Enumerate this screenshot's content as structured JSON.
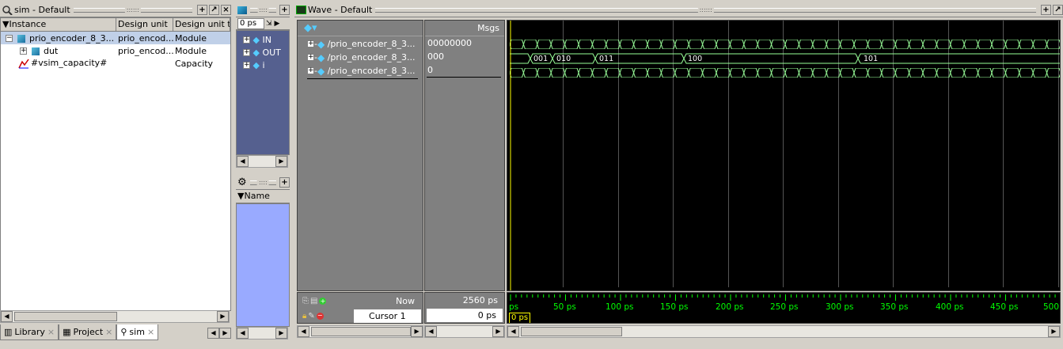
{
  "sim_panel": {
    "title": "sim - Default",
    "columns": [
      "Instance",
      "Design unit",
      "Design unit typ"
    ],
    "rows": [
      {
        "instance": "prio_encoder_8_3...",
        "design_unit": "prio_encod...",
        "type": "Module"
      },
      {
        "instance": "dut",
        "design_unit": "prio_encod...",
        "type": "Module"
      },
      {
        "instance": "#vsim_capacity#",
        "design_unit": "",
        "type": "Capacity"
      }
    ],
    "tabs": [
      "Library",
      "Project",
      "sim"
    ]
  },
  "objects_panel": {
    "time_field": "0 ps",
    "items": [
      "IN",
      "OUT",
      "i"
    ]
  },
  "process_panel": {
    "column": "Name"
  },
  "wave": {
    "title": "Wave - Default",
    "msgs_header": "Msgs",
    "signals": [
      {
        "name": "/prio_encoder_8_3...",
        "value": "00000000"
      },
      {
        "name": "/prio_encoder_8_3...",
        "value": "000"
      },
      {
        "name": "/prio_encoder_8_3...",
        "value": "0"
      }
    ],
    "bus_values": [
      "001",
      "010",
      "011",
      "100",
      "101"
    ],
    "now_label": "Now",
    "now_value": "2560 ps",
    "cursor_label": "Cursor 1",
    "cursor_value": "0 ps",
    "cursor_marker": "0 ps",
    "ruler": [
      "ps",
      "50 ps",
      "100 ps",
      "150 ps",
      "200 ps",
      "250 ps",
      "300 ps",
      "350 ps",
      "400 ps",
      "450 ps",
      "500"
    ],
    "colors": {
      "waveform": "#99ff99",
      "ruler": "#00ff00",
      "cursor": "#ffff00",
      "background": "#000000"
    }
  }
}
